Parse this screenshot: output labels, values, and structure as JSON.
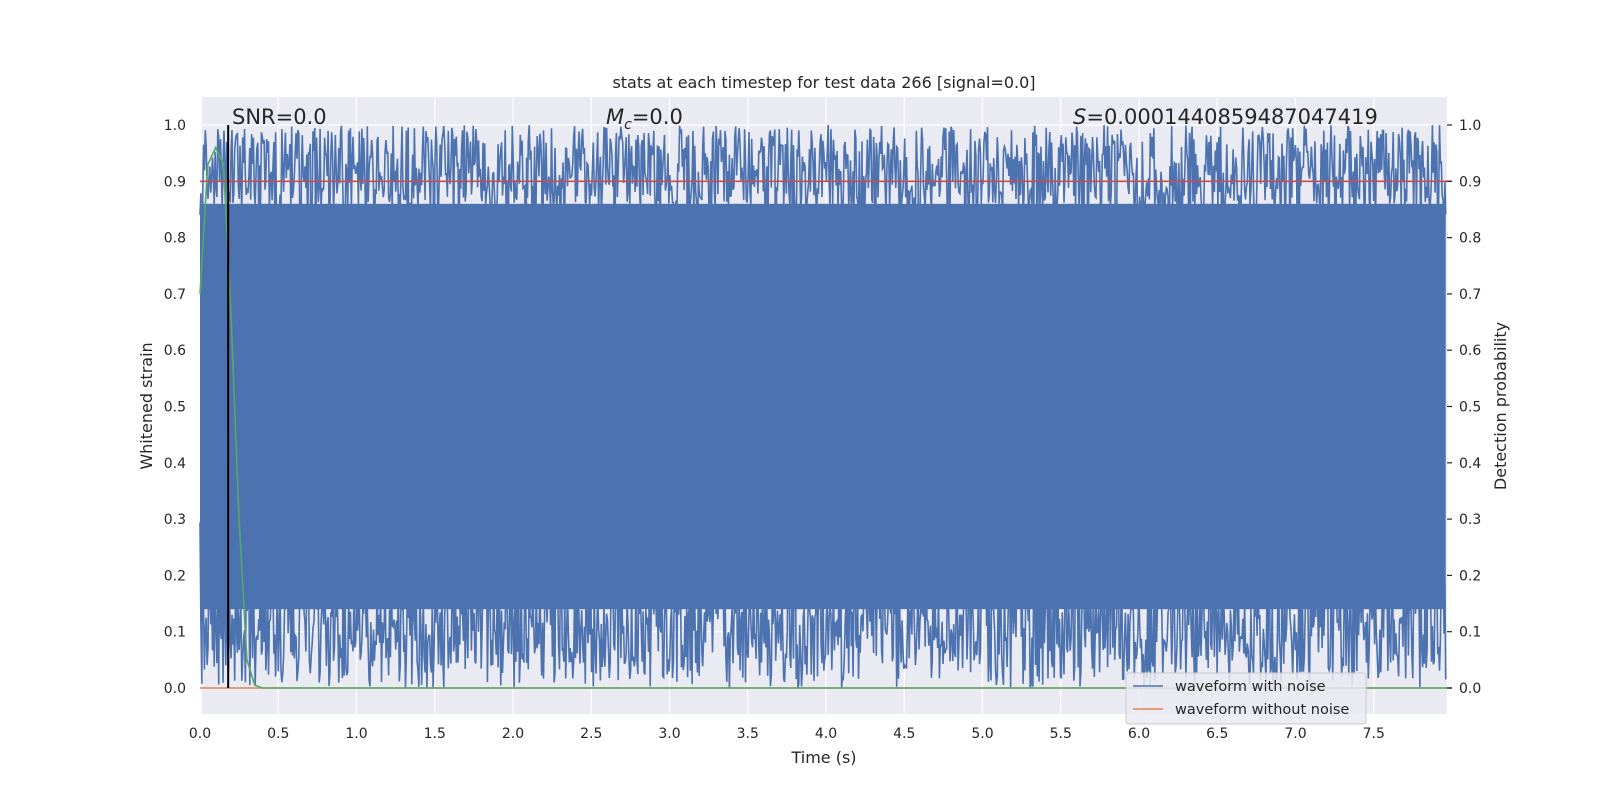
{
  "chart_data": {
    "type": "line",
    "title": "stats at each timestep for test data 266 [signal=0.0]",
    "xlabel": "Time (s)",
    "ylabel": "Whitened strain",
    "ylabel_right": "Detection probability",
    "xlim": [
      0.0,
      8.0
    ],
    "ylim": [
      -0.05,
      1.05
    ],
    "x_ticks": [
      0.0,
      0.5,
      1.0,
      1.5,
      2.0,
      2.5,
      3.0,
      3.5,
      4.0,
      4.5,
      5.0,
      5.5,
      6.0,
      6.5,
      7.0,
      7.5
    ],
    "x_tick_labels": [
      "0.0",
      "0.5",
      "1.0",
      "1.5",
      "2.0",
      "2.5",
      "3.0",
      "3.5",
      "4.0",
      "4.5",
      "5.0",
      "5.5",
      "6.0",
      "6.5",
      "7.0",
      "7.5"
    ],
    "y_ticks": [
      0.0,
      0.1,
      0.2,
      0.3,
      0.4,
      0.5,
      0.6,
      0.7,
      0.8,
      0.9,
      1.0
    ],
    "y_tick_labels": [
      "0.0",
      "0.1",
      "0.2",
      "0.3",
      "0.4",
      "0.5",
      "0.6",
      "0.7",
      "0.8",
      "0.9",
      "1.0"
    ],
    "y2_tick_labels": [
      "0.0",
      "0.1",
      "0.2",
      "0.3",
      "0.4",
      "0.5",
      "0.6",
      "0.7",
      "0.8",
      "0.9",
      "1.0"
    ],
    "grid": true,
    "background_color": "#eaeaf2",
    "legend_position": "lower right",
    "annotations": {
      "snr": "SNR=0.0",
      "mc_symbol": "M",
      "mc_subscript": "c",
      "mc_value": "=0.0",
      "s_symbol": "S",
      "s_value": "=0.0001440859487047419"
    },
    "series": [
      {
        "name": "waveform with noise",
        "color": "#4c72b0",
        "description": "dense noise trace spanning roughly 0.0 to 1.0 across the full time range",
        "x_range": [
          0.0,
          8.0
        ],
        "y_range": [
          0.0,
          1.0
        ]
      },
      {
        "name": "waveform without noise",
        "color": "#dd8452",
        "x": [
          0.0,
          8.0
        ],
        "values": [
          0.0,
          0.0
        ]
      },
      {
        "color": "#55a868",
        "x": [
          0.0,
          0.05,
          0.1,
          0.15,
          0.2,
          0.25,
          0.3,
          0.35,
          0.4,
          8.0
        ],
        "values": [
          0.7,
          0.93,
          0.96,
          0.93,
          0.65,
          0.3,
          0.05,
          0.005,
          0.0,
          0.0
        ]
      },
      {
        "color": "#c44e52",
        "x": [
          0.0,
          8.0
        ],
        "values": [
          0.9,
          0.9
        ]
      }
    ],
    "vertical_marker": {
      "x": 0.18,
      "color": "#000000"
    }
  }
}
